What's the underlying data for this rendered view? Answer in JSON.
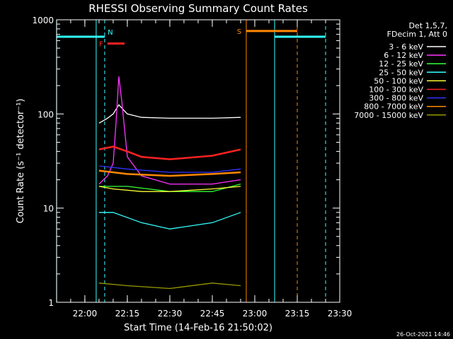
{
  "chart_data": {
    "type": "line",
    "title": "RHESSI Observing Summary Count Rates",
    "xlabel": "Start Time (14-Feb-16 21:50:02)",
    "ylabel": "Count Rate (s⁻¹ detector⁻¹)",
    "y_scale": "log",
    "ylim": [
      1,
      1000
    ],
    "x_range": [
      "21:50:02",
      "23:30:00"
    ],
    "x_ticks": [
      "22:00",
      "22:15",
      "22:30",
      "22:45",
      "23:00",
      "23:15",
      "23:30"
    ],
    "y_ticks": [
      "1",
      "10",
      "100",
      "1000"
    ],
    "legend_header": [
      "Det 1,5,7,",
      "FDecim 1, Att 0"
    ],
    "legend_position": "top-right",
    "footer_date": "26-Oct-2021 14:46",
    "flag_labels": {
      "night": "N",
      "flare": "F",
      "saa": "S"
    },
    "series": [
      {
        "name": "3 - 6 keV",
        "color": "#ffffff",
        "points": [
          [
            "21:55",
            null
          ],
          [
            "22:05",
            80
          ],
          [
            "22:08",
            90
          ],
          [
            "22:10",
            100
          ],
          [
            "22:12",
            125
          ],
          [
            "22:15",
            100
          ],
          [
            "22:20",
            92
          ],
          [
            "22:30",
            90
          ],
          [
            "22:45",
            90
          ],
          [
            "22:55",
            92
          ],
          [
            "22:56",
            null
          ]
        ]
      },
      {
        "name": "6 - 12 keV",
        "color": "#ff33ff",
        "points": [
          [
            "22:05",
            18
          ],
          [
            "22:08",
            22
          ],
          [
            "22:10",
            30
          ],
          [
            "22:11",
            80
          ],
          [
            "22:12",
            250
          ],
          [
            "22:13",
            140
          ],
          [
            "22:15",
            35
          ],
          [
            "22:20",
            22
          ],
          [
            "22:30",
            18
          ],
          [
            "22:45",
            18
          ],
          [
            "22:55",
            20
          ]
        ]
      },
      {
        "name": "12 - 25 keV",
        "color": "#33ff33",
        "points": [
          [
            "22:05",
            17
          ],
          [
            "22:15",
            17
          ],
          [
            "22:30",
            15
          ],
          [
            "22:45",
            15
          ],
          [
            "22:55",
            18
          ]
        ]
      },
      {
        "name": "25 - 50 keV",
        "color": "#33ffff",
        "points": [
          [
            "22:05",
            9
          ],
          [
            "22:10",
            9
          ],
          [
            "22:20",
            7
          ],
          [
            "22:30",
            6
          ],
          [
            "22:45",
            7
          ],
          [
            "22:55",
            9
          ]
        ]
      },
      {
        "name": "50 - 100 keV",
        "color": "#ffff33",
        "points": [
          [
            "22:05",
            17
          ],
          [
            "22:10",
            16
          ],
          [
            "22:20",
            15
          ],
          [
            "22:30",
            15
          ],
          [
            "22:45",
            16
          ],
          [
            "22:55",
            17
          ]
        ]
      },
      {
        "name": "100 - 300 keV",
        "color": "#ff2222",
        "points": [
          [
            "22:05",
            42
          ],
          [
            "22:10",
            45
          ],
          [
            "22:15",
            40
          ],
          [
            "22:20",
            35
          ],
          [
            "22:30",
            33
          ],
          [
            "22:45",
            36
          ],
          [
            "22:55",
            42
          ]
        ]
      },
      {
        "name": "300 - 800 keV",
        "color": "#3333ff",
        "points": [
          [
            "22:05",
            28
          ],
          [
            "22:15",
            26
          ],
          [
            "22:30",
            24
          ],
          [
            "22:45",
            24
          ],
          [
            "22:55",
            26
          ]
        ]
      },
      {
        "name": "800 - 7000 keV",
        "color": "#ff8800",
        "points": [
          [
            "22:05",
            25
          ],
          [
            "22:15",
            23
          ],
          [
            "22:30",
            22
          ],
          [
            "22:45",
            23
          ],
          [
            "22:55",
            24
          ]
        ]
      },
      {
        "name": "7000 - 15000 keV",
        "color": "#999900",
        "points": [
          [
            "22:05",
            1.6
          ],
          [
            "22:15",
            1.5
          ],
          [
            "22:30",
            1.4
          ],
          [
            "22:45",
            1.6
          ],
          [
            "22:55",
            1.5
          ]
        ]
      }
    ],
    "night_intervals": [
      [
        "21:50",
        "22:07"
      ],
      [
        "23:07",
        "23:25"
      ]
    ],
    "flare_interval": [
      "22:08",
      "22:14"
    ],
    "saa_interval": [
      "22:57",
      "23:15"
    ],
    "vlines": [
      {
        "t": "21:50",
        "color": "#33ffff",
        "style": "solid"
      },
      {
        "t": "22:04",
        "color": "#33ffff",
        "style": "solid"
      },
      {
        "t": "22:07",
        "color": "#33ffff",
        "style": "dashed"
      },
      {
        "t": "22:57",
        "color": "#ff8800",
        "style": "solid"
      },
      {
        "t": "23:07",
        "color": "#33ffff",
        "style": "solid"
      },
      {
        "t": "23:15",
        "color": "#ff8800",
        "style": "dashed"
      },
      {
        "t": "23:25",
        "color": "#33ffff",
        "style": "dashed"
      }
    ]
  }
}
